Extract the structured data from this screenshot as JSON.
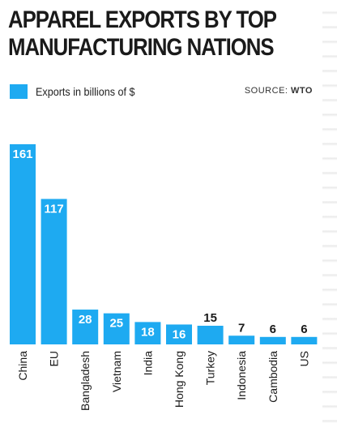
{
  "header": {
    "title_line1": "APPAREL EXPORTS BY TOP",
    "title_line2": "MANUFACTURING NATIONS",
    "source_prefix": "SOURCE:",
    "source_name": "WTO"
  },
  "colors": {
    "bar": "#1eaaf1",
    "label_inside": "#ffffff",
    "label_outside": "#1a1a1a"
  },
  "chart_data": {
    "type": "bar",
    "title": "APPAREL EXPORTS BY TOP MANUFACTURING NATIONS",
    "categories": [
      "China",
      "EU",
      "Bangladesh",
      "Vietnam",
      "India",
      "Hong Kong",
      "Turkey",
      "Indonesia",
      "Cambodia",
      "US"
    ],
    "series": [
      {
        "name": "Exports in billions of $",
        "values": [
          161,
          117,
          28,
          25,
          18,
          16,
          15,
          7,
          6,
          6
        ]
      }
    ],
    "ylim": [
      0,
      161
    ],
    "grid": false,
    "legend": "top-left"
  }
}
